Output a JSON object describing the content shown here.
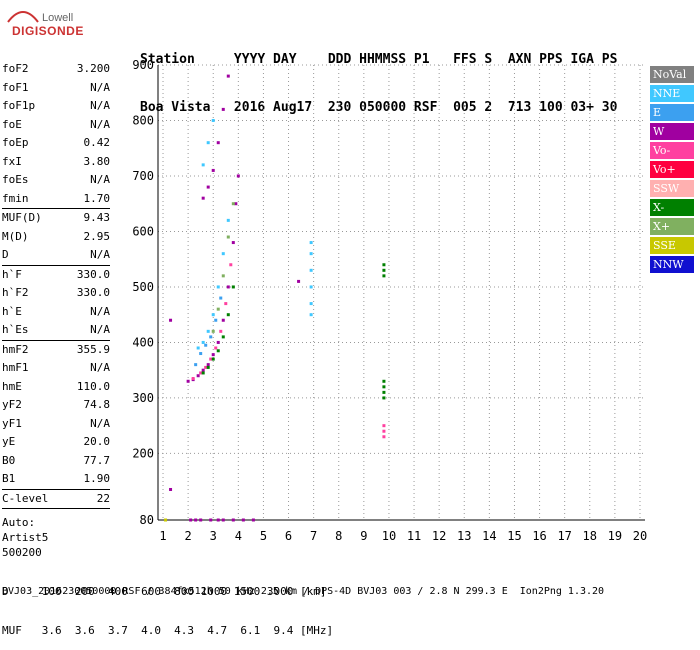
{
  "logo": {
    "line1": "Lowell",
    "line2": "DIGISONDE"
  },
  "header": {
    "row1": "Station     YYYY DAY    DDD HHMMSS P1   FFS S  AXN PPS IGA PS",
    "row2": "Boa Vista   2016 Aug17  230 050000 RSF  005 2  713 100 03+ 30"
  },
  "params": [
    {
      "label": "foF2",
      "value": "3.200"
    },
    {
      "label": "foF1",
      "value": "N/A"
    },
    {
      "label": "foF1p",
      "value": "N/A"
    },
    {
      "label": "foE",
      "value": "N/A"
    },
    {
      "label": "foEp",
      "value": "0.42"
    },
    {
      "label": "fxI",
      "value": "3.80"
    },
    {
      "label": "foEs",
      "value": "N/A"
    },
    {
      "label": "fmin",
      "value": "1.70"
    },
    {
      "sep": true
    },
    {
      "label": "MUF(D)",
      "value": "9.43"
    },
    {
      "label": "M(D)",
      "value": "2.95"
    },
    {
      "label": "D",
      "value": "N/A"
    },
    {
      "sep": true
    },
    {
      "label": "h`F",
      "value": "330.0"
    },
    {
      "label": "h`F2",
      "value": "330.0"
    },
    {
      "label": "h`E",
      "value": "N/A"
    },
    {
      "label": "h`Es",
      "value": "N/A"
    },
    {
      "sep": true
    },
    {
      "label": "hmF2",
      "value": "355.9"
    },
    {
      "label": "hmF1",
      "value": "N/A"
    },
    {
      "label": "hmE",
      "value": "110.0"
    },
    {
      "label": "yF2",
      "value": "74.8"
    },
    {
      "label": "yF1",
      "value": "N/A"
    },
    {
      "label": "yE",
      "value": "20.0"
    },
    {
      "label": "B0",
      "value": "77.7"
    },
    {
      "label": "B1",
      "value": "1.90"
    },
    {
      "sep": true
    },
    {
      "label": "C-level",
      "value": "22"
    },
    {
      "sep": true
    }
  ],
  "auto": {
    "l1": "Auto:",
    "l2": "Artist5",
    "l3": "500200"
  },
  "legend": [
    {
      "label": "NoVal",
      "color": "#808080"
    },
    {
      "label": "NNE",
      "color": "#40c8ff"
    },
    {
      "label": "E",
      "color": "#3ca0f0"
    },
    {
      "label": "W",
      "color": "#a000a0"
    },
    {
      "label": "Vo-",
      "color": "#ff40a0"
    },
    {
      "label": "Vo+",
      "color": "#ff0040"
    },
    {
      "label": "SSW",
      "color": "#ffb0b0"
    },
    {
      "label": "X-",
      "color": "#008000"
    },
    {
      "label": "X+",
      "color": "#80b060"
    },
    {
      "label": "SSE",
      "color": "#c8c800"
    },
    {
      "label": "NNW",
      "color": "#1010d0"
    }
  ],
  "chart_data": {
    "type": "scatter",
    "xlim": [
      0.8,
      20.2
    ],
    "ylim": [
      80,
      900
    ],
    "x_ticks": [
      1,
      2,
      3,
      4,
      5,
      6,
      7,
      8,
      9,
      10,
      11,
      12,
      13,
      14,
      15,
      16,
      17,
      18,
      19,
      20
    ],
    "y_ticks": [
      80,
      200,
      300,
      400,
      500,
      600,
      700,
      800,
      900
    ],
    "grid": true,
    "series": [
      {
        "name": "W",
        "color": "#a000a0",
        "points": [
          [
            2.0,
            330
          ],
          [
            2.2,
            333
          ],
          [
            2.4,
            340
          ],
          [
            2.6,
            350
          ],
          [
            2.8,
            360
          ],
          [
            3.0,
            378
          ],
          [
            3.2,
            400
          ],
          [
            3.4,
            440
          ],
          [
            3.6,
            500
          ],
          [
            3.8,
            580
          ],
          [
            3.9,
            650
          ],
          [
            4.0,
            700
          ],
          [
            2.6,
            660
          ],
          [
            2.8,
            680
          ],
          [
            3.0,
            710
          ],
          [
            3.2,
            760
          ],
          [
            3.4,
            820
          ],
          [
            3.6,
            880
          ],
          [
            6.4,
            510
          ],
          [
            1.3,
            440
          ],
          [
            1.3,
            135
          ],
          [
            2.1,
            80
          ],
          [
            2.3,
            80
          ],
          [
            2.5,
            80
          ],
          [
            2.9,
            80
          ],
          [
            3.2,
            80
          ],
          [
            3.4,
            80
          ],
          [
            3.8,
            80
          ],
          [
            4.2,
            80
          ],
          [
            4.6,
            80
          ]
        ]
      },
      {
        "name": "Vo-",
        "color": "#ff40a0",
        "points": [
          [
            2.2,
            335
          ],
          [
            2.5,
            345
          ],
          [
            2.7,
            355
          ],
          [
            2.9,
            370
          ],
          [
            3.1,
            390
          ],
          [
            3.3,
            420
          ],
          [
            3.5,
            470
          ],
          [
            3.7,
            540
          ],
          [
            9.8,
            230
          ],
          [
            9.8,
            240
          ],
          [
            9.8,
            250
          ]
        ]
      },
      {
        "name": "NNE",
        "color": "#40c8ff",
        "points": [
          [
            2.4,
            390
          ],
          [
            2.6,
            400
          ],
          [
            2.8,
            420
          ],
          [
            3.0,
            450
          ],
          [
            3.2,
            500
          ],
          [
            3.4,
            560
          ],
          [
            3.6,
            620
          ],
          [
            2.6,
            720
          ],
          [
            2.8,
            760
          ],
          [
            3.0,
            800
          ],
          [
            6.9,
            450
          ],
          [
            6.9,
            470
          ],
          [
            6.9,
            500
          ],
          [
            6.9,
            530
          ],
          [
            6.9,
            560
          ],
          [
            6.9,
            580
          ]
        ]
      },
      {
        "name": "E",
        "color": "#3ca0f0",
        "points": [
          [
            2.3,
            360
          ],
          [
            2.5,
            380
          ],
          [
            2.7,
            395
          ],
          [
            2.9,
            410
          ],
          [
            3.1,
            440
          ],
          [
            3.3,
            480
          ]
        ]
      },
      {
        "name": "X-",
        "color": "#008000",
        "points": [
          [
            2.6,
            345
          ],
          [
            2.8,
            355
          ],
          [
            3.0,
            370
          ],
          [
            3.2,
            385
          ],
          [
            3.4,
            410
          ],
          [
            3.6,
            450
          ],
          [
            3.8,
            500
          ],
          [
            9.8,
            300
          ],
          [
            9.8,
            310
          ],
          [
            9.8,
            320
          ],
          [
            9.8,
            330
          ],
          [
            9.8,
            520
          ],
          [
            9.8,
            530
          ],
          [
            9.8,
            540
          ]
        ]
      },
      {
        "name": "X+",
        "color": "#80b060",
        "points": [
          [
            3.0,
            420
          ],
          [
            3.2,
            460
          ],
          [
            3.4,
            520
          ],
          [
            3.6,
            590
          ],
          [
            3.8,
            650
          ]
        ]
      },
      {
        "name": "SSE",
        "color": "#c8c800",
        "points": [
          [
            1.1,
            80
          ]
        ]
      }
    ]
  },
  "footer": {
    "row1": "D     100  200  400  600  800 1000 1500 3000 [km]",
    "row2": "MUF   3.6  3.6  3.7  4.0  4.3  4.7  6.1  9.4 [MHz]",
    "fname": "BVJ03_2016230050000.RSF / 384fx512h 50 kHz 2.5 km / DPS-4D BVJ03 003 / 2.8 N 299.3 E  Ion2Png 1.3.20"
  }
}
